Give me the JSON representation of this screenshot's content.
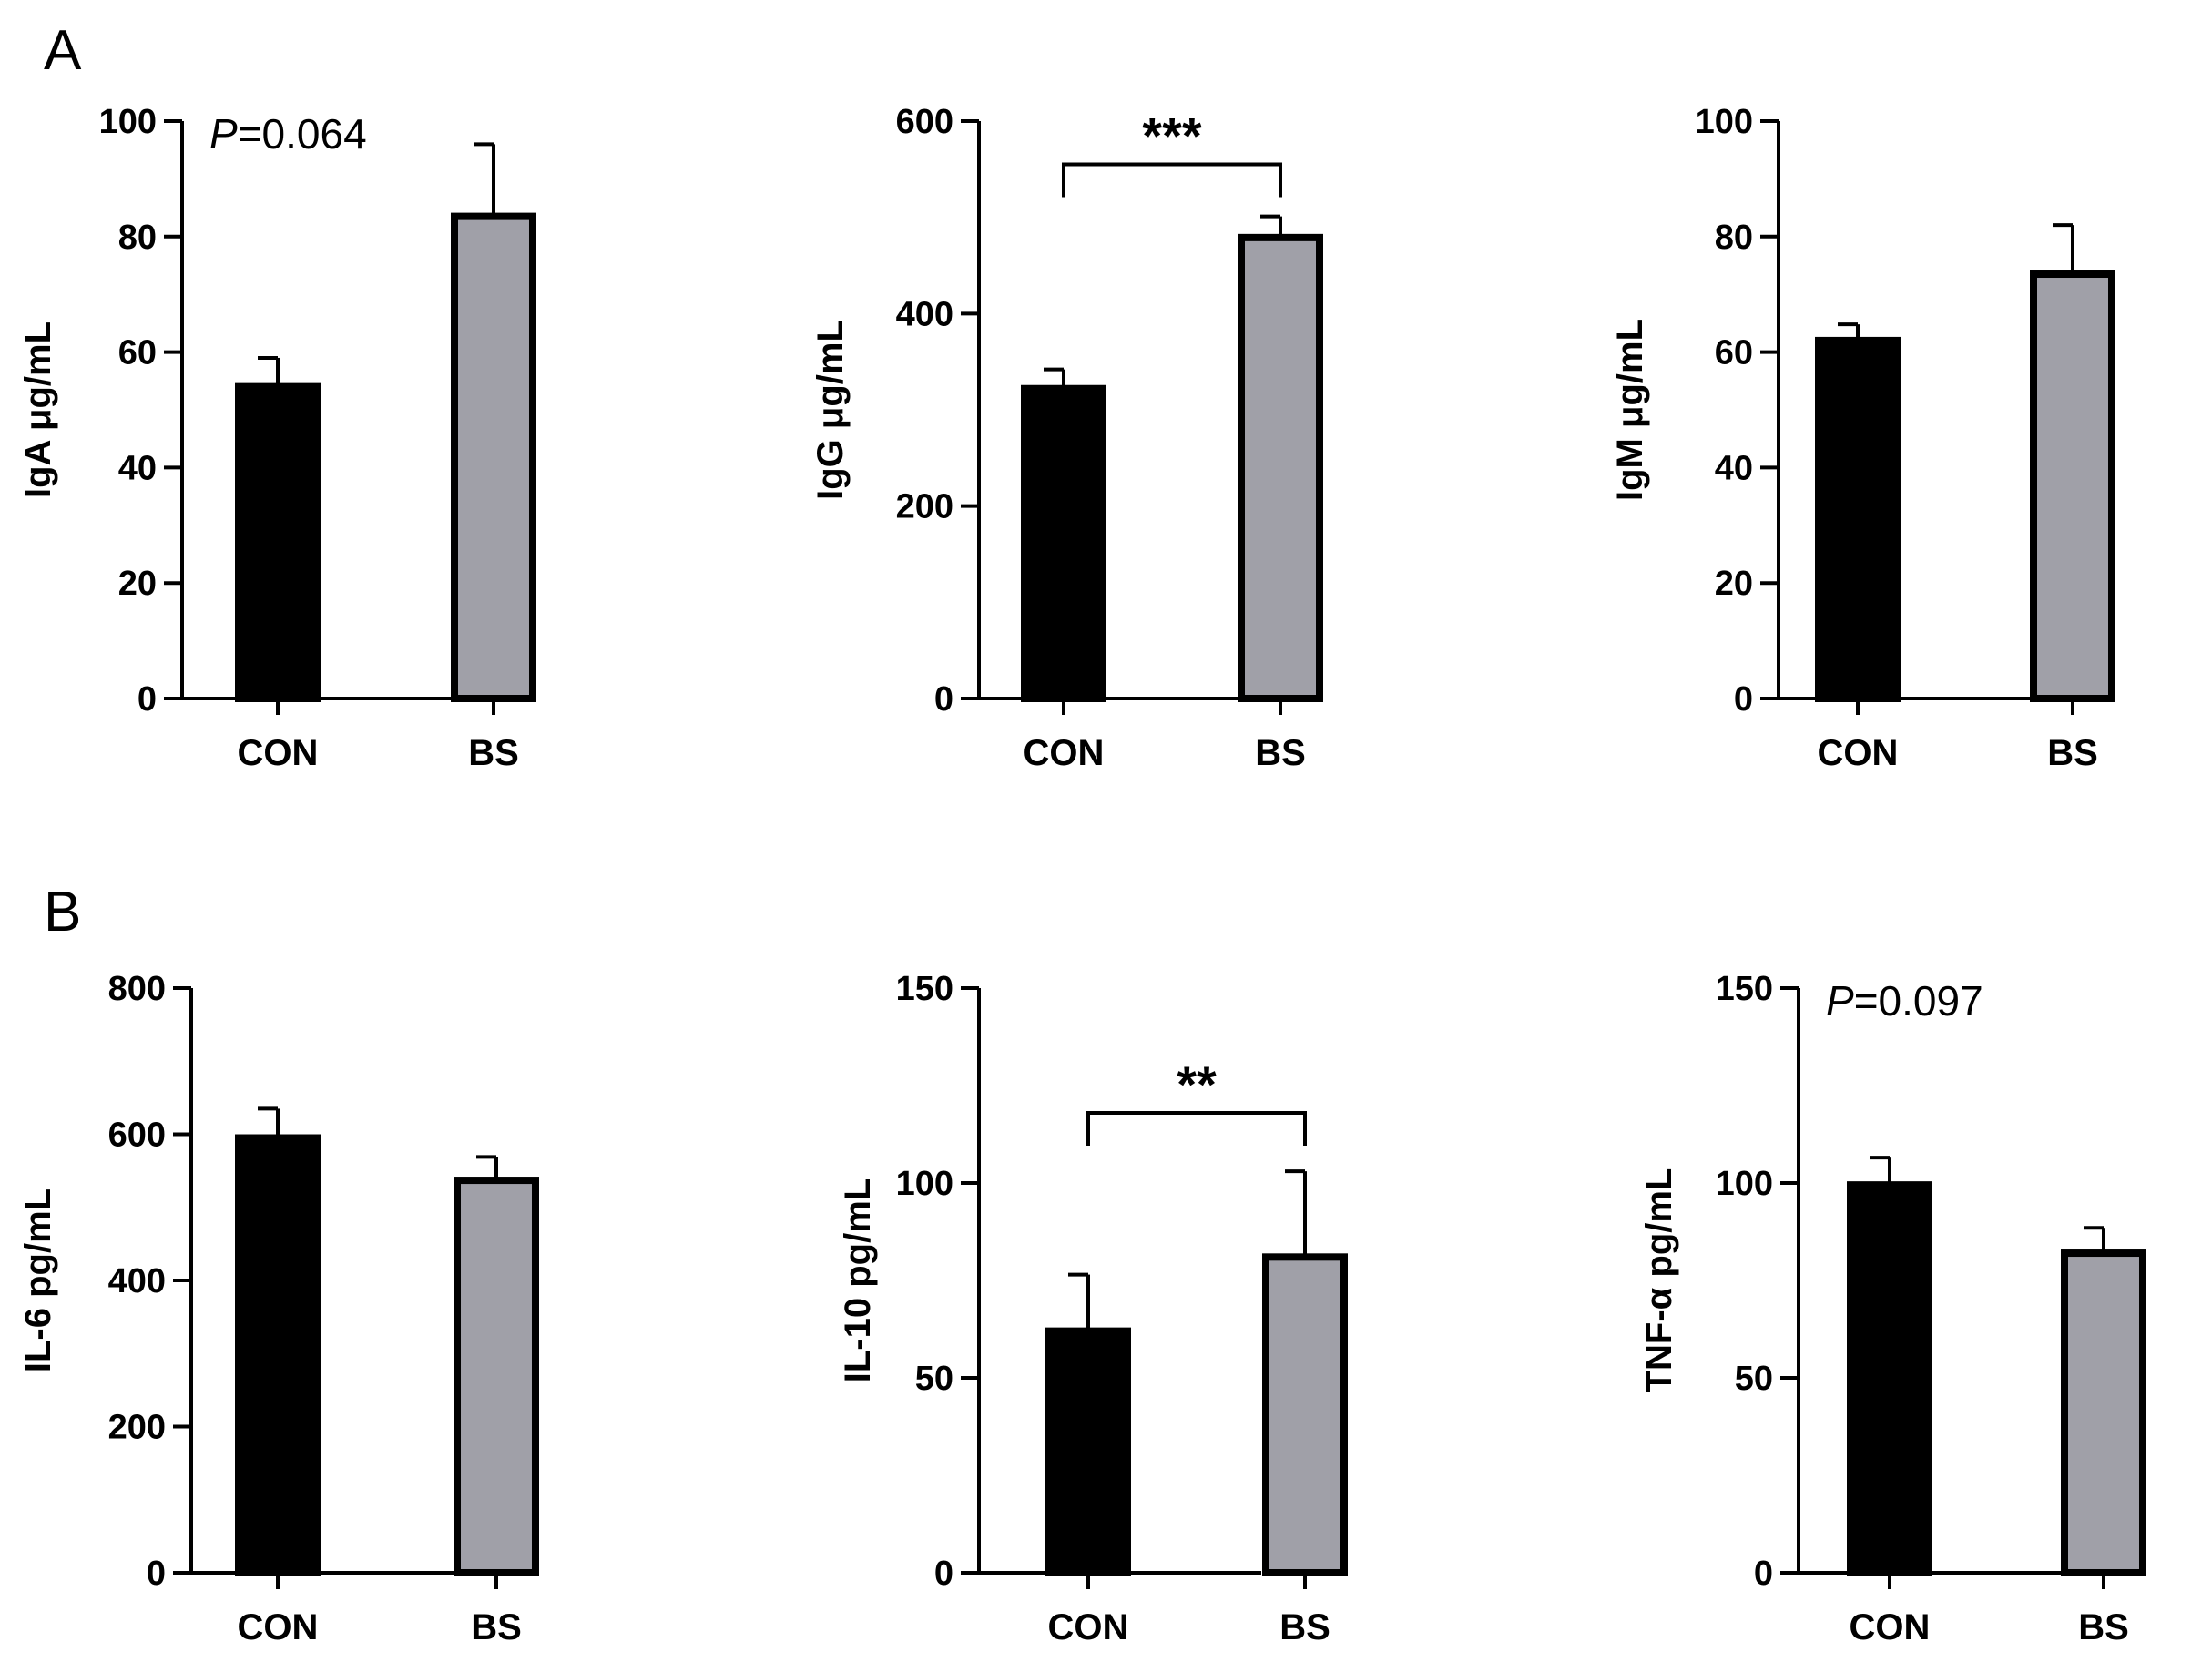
{
  "panels": [
    {
      "label": "A"
    },
    {
      "label": "B"
    }
  ],
  "chart_data": [
    {
      "type": "bar",
      "panel": "A",
      "title": "",
      "xlabel": "",
      "ylabel": "IgA μg/mL",
      "categories": [
        "CON",
        "BS"
      ],
      "values": [
        54,
        83.5
      ],
      "errors": [
        5,
        12.5
      ],
      "colors": [
        "#000000",
        "#a0a0a8"
      ],
      "ylim": [
        0,
        100
      ],
      "yticks": [
        0,
        20,
        40,
        60,
        80,
        100
      ],
      "pvalue_prefix": "P",
      "pvalue": "=0.064",
      "significance": null
    },
    {
      "type": "bar",
      "panel": "A",
      "title": "",
      "xlabel": "",
      "ylabel": "IgG μg/mL",
      "categories": [
        "CON",
        "BS"
      ],
      "values": [
        322,
        479
      ],
      "errors": [
        20,
        22
      ],
      "colors": [
        "#000000",
        "#a0a0a8"
      ],
      "ylim": [
        0,
        600
      ],
      "yticks": [
        0,
        200,
        400,
        600
      ],
      "pvalue_prefix": null,
      "pvalue": null,
      "significance": "***",
      "bracket_top": 555
    },
    {
      "type": "bar",
      "panel": "A",
      "title": "",
      "xlabel": "",
      "ylabel": "IgM μg/mL",
      "categories": [
        "CON",
        "BS"
      ],
      "values": [
        62,
        73.5
      ],
      "errors": [
        2.8,
        8.5
      ],
      "colors": [
        "#000000",
        "#a0a0a8"
      ],
      "ylim": [
        0,
        100
      ],
      "yticks": [
        0,
        20,
        40,
        60,
        80,
        100
      ],
      "pvalue_prefix": null,
      "pvalue": null,
      "significance": null
    },
    {
      "type": "bar",
      "panel": "B",
      "title": "",
      "xlabel": "",
      "ylabel": "IL-6 pg/mL",
      "categories": [
        "CON",
        "BS"
      ],
      "values": [
        595,
        537
      ],
      "errors": [
        40,
        32
      ],
      "colors": [
        "#000000",
        "#a0a0a8"
      ],
      "ylim": [
        0,
        800
      ],
      "yticks": [
        0,
        200,
        400,
        600,
        800
      ],
      "pvalue_prefix": null,
      "pvalue": null,
      "significance": null
    },
    {
      "type": "bar",
      "panel": "B",
      "title": "",
      "xlabel": "",
      "ylabel": "IL-10 pg/mL",
      "categories": [
        "CON",
        "BS"
      ],
      "values": [
        62,
        81
      ],
      "errors": [
        14.5,
        22
      ],
      "colors": [
        "#000000",
        "#a0a0a8"
      ],
      "ylim": [
        0,
        150
      ],
      "yticks": [
        0,
        50,
        100,
        150
      ],
      "pvalue_prefix": null,
      "pvalue": null,
      "significance": "**",
      "bracket_top": 118
    },
    {
      "type": "bar",
      "panel": "B",
      "title": "",
      "xlabel": "",
      "ylabel": "TNF-α pg/mL",
      "categories": [
        "CON",
        "BS"
      ],
      "values": [
        99.5,
        82
      ],
      "errors": [
        7,
        6.5
      ],
      "colors": [
        "#000000",
        "#a0a0a8"
      ],
      "ylim": [
        0,
        150
      ],
      "yticks": [
        0,
        50,
        100,
        150
      ],
      "pvalue_prefix": "P",
      "pvalue": "=0.097",
      "significance": null
    }
  ]
}
